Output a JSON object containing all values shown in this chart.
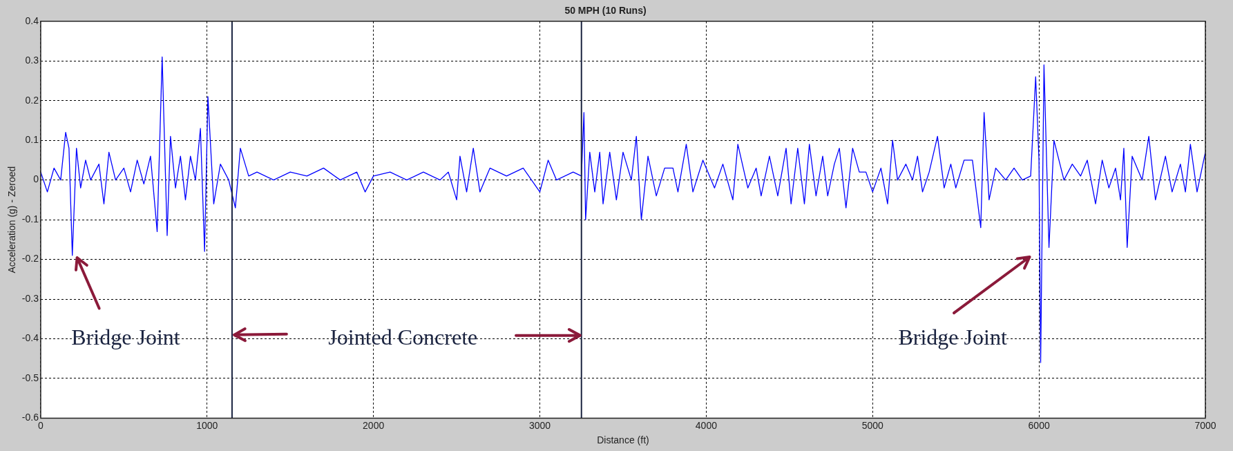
{
  "chart_data": {
    "type": "line",
    "title": "50 MPH (10 Runs)",
    "xlabel": "Distance (ft)",
    "ylabel": "Acceleration (g) - Zeroed",
    "x": [
      0,
      40,
      80,
      120,
      150,
      170,
      190,
      215,
      240,
      270,
      300,
      350,
      380,
      410,
      450,
      500,
      540,
      580,
      620,
      660,
      700,
      730,
      760,
      780,
      810,
      840,
      870,
      900,
      930,
      960,
      985,
      1005,
      1040,
      1080,
      1130,
      1170,
      1200,
      1250,
      1300,
      1400,
      1500,
      1600,
      1700,
      1800,
      1900,
      1950,
      2000,
      2100,
      2200,
      2300,
      2400,
      2450,
      2500,
      2520,
      2560,
      2600,
      2640,
      2700,
      2800,
      2900,
      3000,
      3050,
      3100,
      3200,
      3250,
      3265,
      3275,
      3300,
      3330,
      3360,
      3380,
      3420,
      3460,
      3500,
      3550,
      3580,
      3610,
      3650,
      3700,
      3750,
      3800,
      3830,
      3880,
      3920,
      3980,
      4050,
      4100,
      4160,
      4190,
      4250,
      4300,
      4330,
      4380,
      4430,
      4480,
      4510,
      4550,
      4590,
      4620,
      4660,
      4700,
      4730,
      4770,
      4800,
      4840,
      4880,
      4920,
      4960,
      5000,
      5050,
      5090,
      5120,
      5150,
      5200,
      5240,
      5270,
      5300,
      5340,
      5390,
      5430,
      5470,
      5500,
      5550,
      5600,
      5650,
      5670,
      5700,
      5740,
      5800,
      5850,
      5900,
      5950,
      5980,
      6000,
      6010,
      6030,
      6060,
      6090,
      6150,
      6200,
      6250,
      6290,
      6340,
      6380,
      6420,
      6460,
      6490,
      6510,
      6530,
      6560,
      6620,
      6660,
      6700,
      6760,
      6800,
      6850,
      6880,
      6910,
      6950,
      7000
    ],
    "series": [
      {
        "color": "#0000ff",
        "values": [
          0.02,
          -0.03,
          0.03,
          0.0,
          0.12,
          0.08,
          -0.19,
          0.08,
          -0.02,
          0.05,
          0.0,
          0.04,
          -0.06,
          0.07,
          0.0,
          0.03,
          -0.03,
          0.05,
          -0.01,
          0.06,
          -0.13,
          0.31,
          -0.14,
          0.11,
          -0.02,
          0.06,
          -0.05,
          0.06,
          0.0,
          0.13,
          -0.18,
          0.21,
          -0.06,
          0.04,
          0.0,
          -0.07,
          0.08,
          0.01,
          0.02,
          0.0,
          0.02,
          0.01,
          0.03,
          0.0,
          0.02,
          -0.03,
          0.01,
          0.02,
          0.0,
          0.02,
          0.0,
          0.02,
          -0.05,
          0.06,
          -0.03,
          0.08,
          -0.03,
          0.03,
          0.01,
          0.03,
          -0.03,
          0.05,
          0.0,
          0.02,
          0.01,
          0.17,
          -0.1,
          0.07,
          -0.03,
          0.07,
          -0.06,
          0.07,
          -0.05,
          0.07,
          0.0,
          0.11,
          -0.1,
          0.06,
          -0.04,
          0.03,
          0.03,
          -0.03,
          0.09,
          -0.03,
          0.05,
          -0.02,
          0.04,
          -0.05,
          0.09,
          -0.02,
          0.03,
          -0.04,
          0.06,
          -0.04,
          0.08,
          -0.06,
          0.08,
          -0.06,
          0.09,
          -0.04,
          0.06,
          -0.04,
          0.04,
          0.08,
          -0.07,
          0.08,
          0.02,
          0.02,
          -0.03,
          0.03,
          -0.06,
          0.1,
          0.0,
          0.04,
          0.0,
          0.06,
          -0.03,
          0.02,
          0.11,
          -0.02,
          0.04,
          -0.02,
          0.05,
          0.05,
          -0.12,
          0.17,
          -0.05,
          0.03,
          0.0,
          0.03,
          0.0,
          0.01,
          0.26,
          0.05,
          -0.46,
          0.29,
          -0.17,
          0.1,
          0.0,
          0.04,
          0.01,
          0.05,
          -0.06,
          0.05,
          -0.02,
          0.03,
          -0.05,
          0.08,
          -0.17,
          0.06,
          0.0,
          0.11,
          -0.05,
          0.06,
          -0.03,
          0.04,
          -0.03,
          0.09,
          -0.03,
          0.07
        ]
      }
    ],
    "xlim": [
      0,
      7000
    ],
    "xticks": [
      0,
      1000,
      2000,
      3000,
      4000,
      5000,
      6000,
      7000
    ],
    "ylim": [
      -0.6,
      0.4
    ],
    "yticks": [
      -0.6,
      -0.5,
      -0.4,
      -0.3,
      -0.2,
      -0.1,
      0,
      0.1,
      0.2,
      0.3,
      0.4
    ],
    "grid": true,
    "marker": "none",
    "line_style": "solid",
    "legend": false,
    "ref_lines": [
      {
        "axis": "x",
        "value": 1150,
        "color": "#1a2340"
      },
      {
        "axis": "x",
        "value": 3250,
        "color": "#1a2340"
      }
    ],
    "annotations": [
      "Bridge Joint",
      "Jointed Concrete",
      "Bridge Joint"
    ]
  }
}
